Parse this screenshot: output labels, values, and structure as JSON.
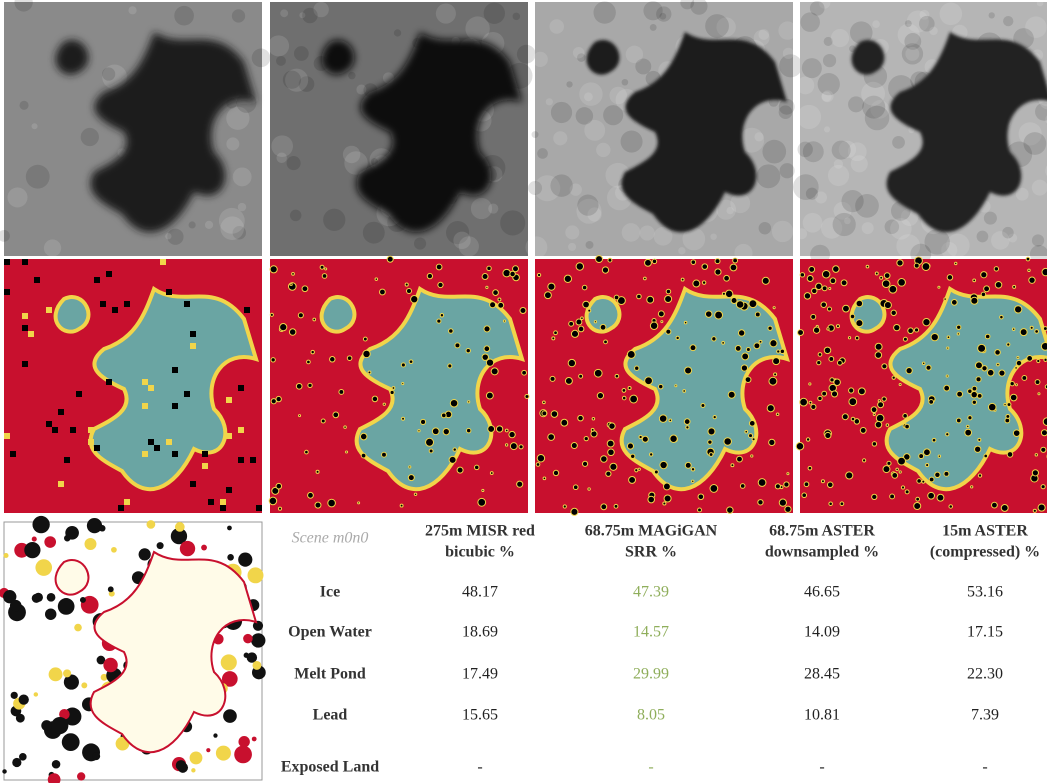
{
  "table": {
    "corner": "Scene m0n0",
    "columns": [
      [
        "275m MISR red",
        "bicubic %"
      ],
      [
        "68.75m MAGiGAN",
        "SRR %"
      ],
      [
        "68.75m ASTER",
        "downsampled %"
      ],
      [
        "15m ASTER",
        "(compressed) %"
      ]
    ],
    "rows": [
      {
        "label": "Ice",
        "cells": [
          "48.17",
          "47.39",
          "46.65",
          "53.16"
        ]
      },
      {
        "label": "Open Water",
        "cells": [
          "18.69",
          "14.57",
          "14.09",
          "17.15"
        ]
      },
      {
        "label": "Melt Pond",
        "cells": [
          "17.49",
          "29.99",
          "28.45",
          "22.30"
        ]
      },
      {
        "label": "Lead",
        "cells": [
          "15.65",
          "8.05",
          "10.81",
          "7.39"
        ]
      },
      {
        "label": "Exposed Land",
        "cells": [
          "-",
          "-",
          "-",
          "-"
        ]
      }
    ]
  }
}
